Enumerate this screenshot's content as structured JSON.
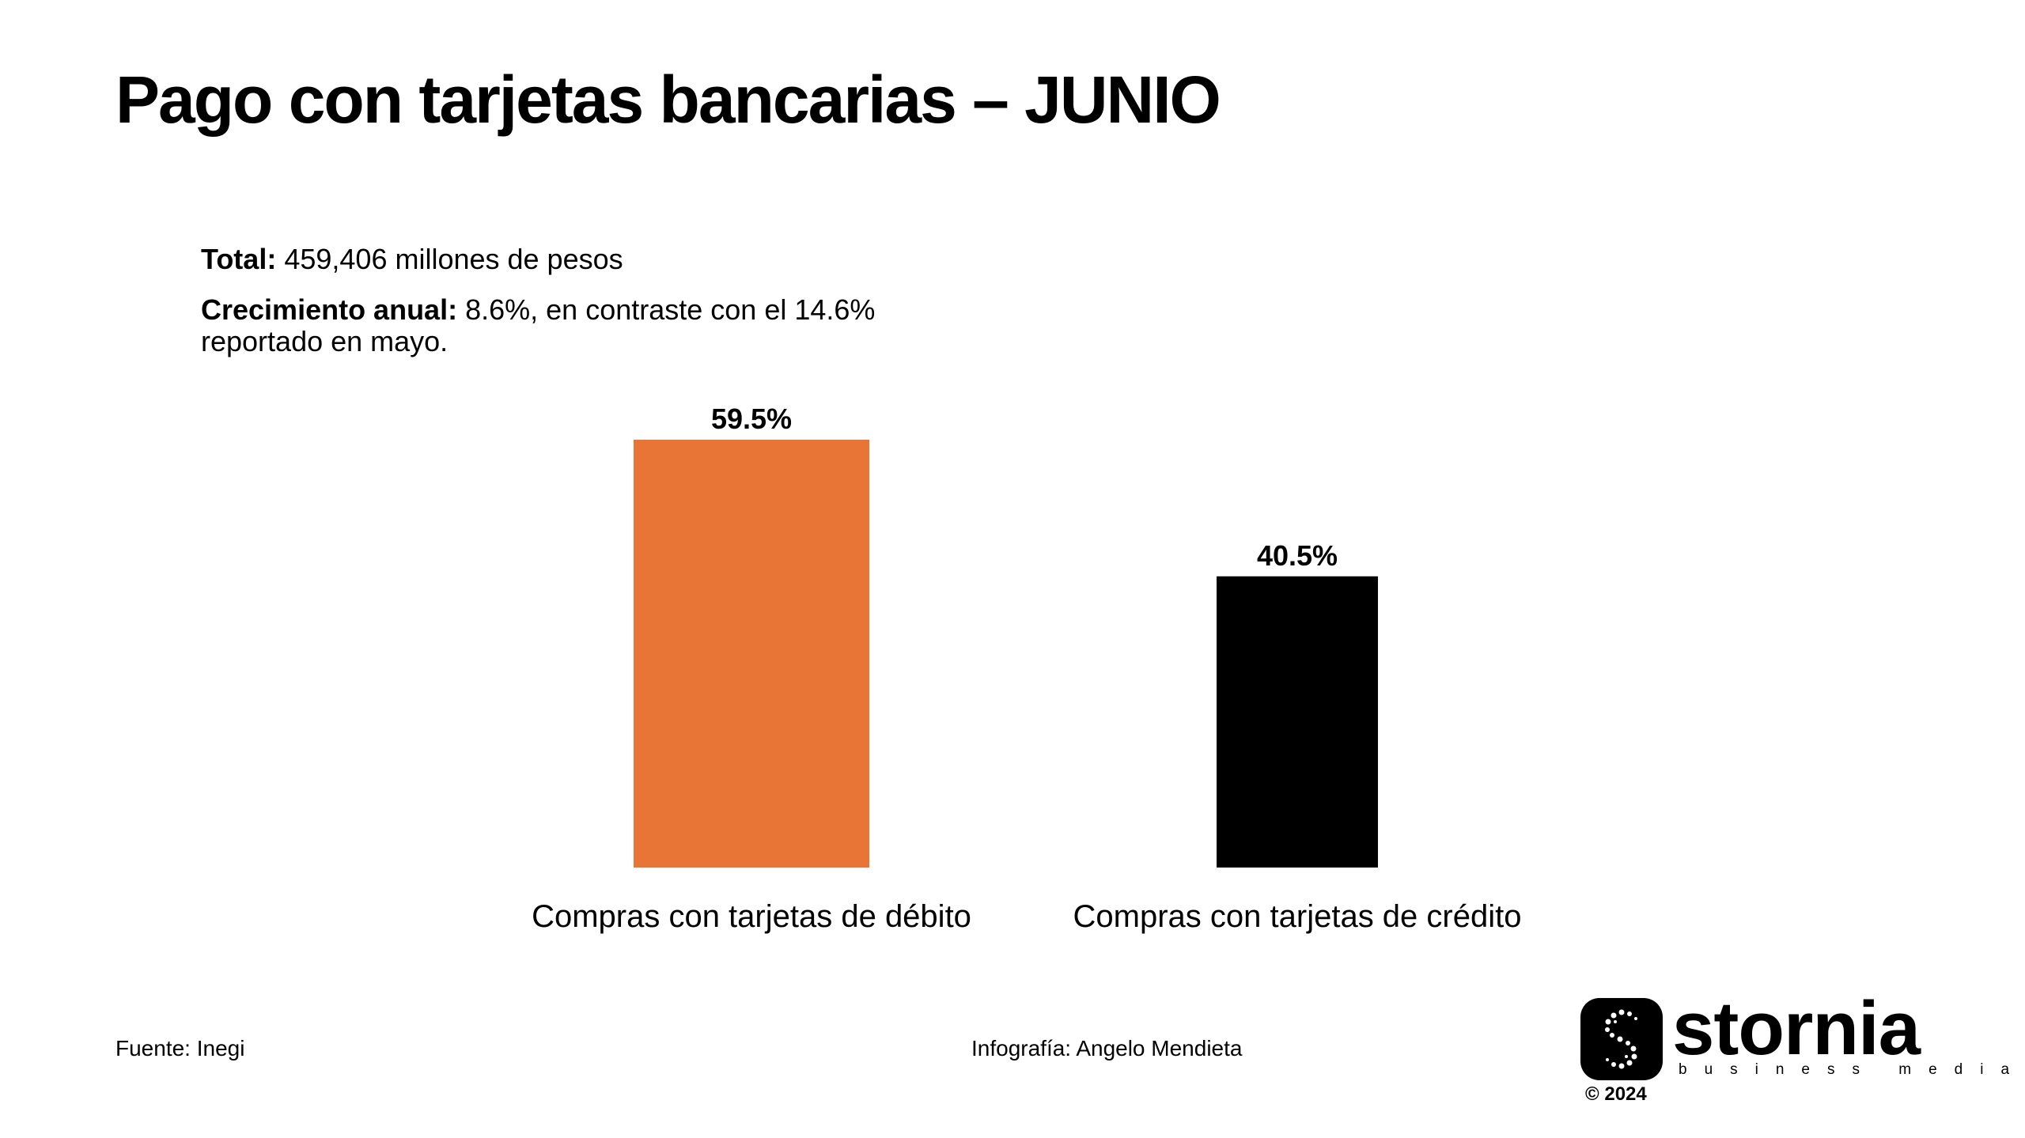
{
  "title": "Pago con tarjetas bancarias – JUNIO",
  "stats": {
    "total_label": "Total:",
    "total_value": "459,406 millones de pesos",
    "growth_label": "Crecimiento anual:",
    "growth_value": "8.6%, en contraste con el 14.6%",
    "growth_value_cont": "reportado en mayo."
  },
  "chart_data": {
    "type": "bar",
    "categories": [
      "Compras con tarjetas de débito",
      "Compras con tarjetas de crédito"
    ],
    "values": [
      59.5,
      40.5
    ],
    "data_labels": [
      "59.5%",
      "40.5%"
    ],
    "colors": [
      "#E87435",
      "#000000"
    ],
    "grid": false
  },
  "footer": {
    "source": "Fuente: Inegi",
    "credit": "Infografía: Angelo Mendieta"
  },
  "logo": {
    "icon": "stornia-s-icon",
    "name": "stornia",
    "tagline": "business media",
    "copyright": "© 2024"
  }
}
